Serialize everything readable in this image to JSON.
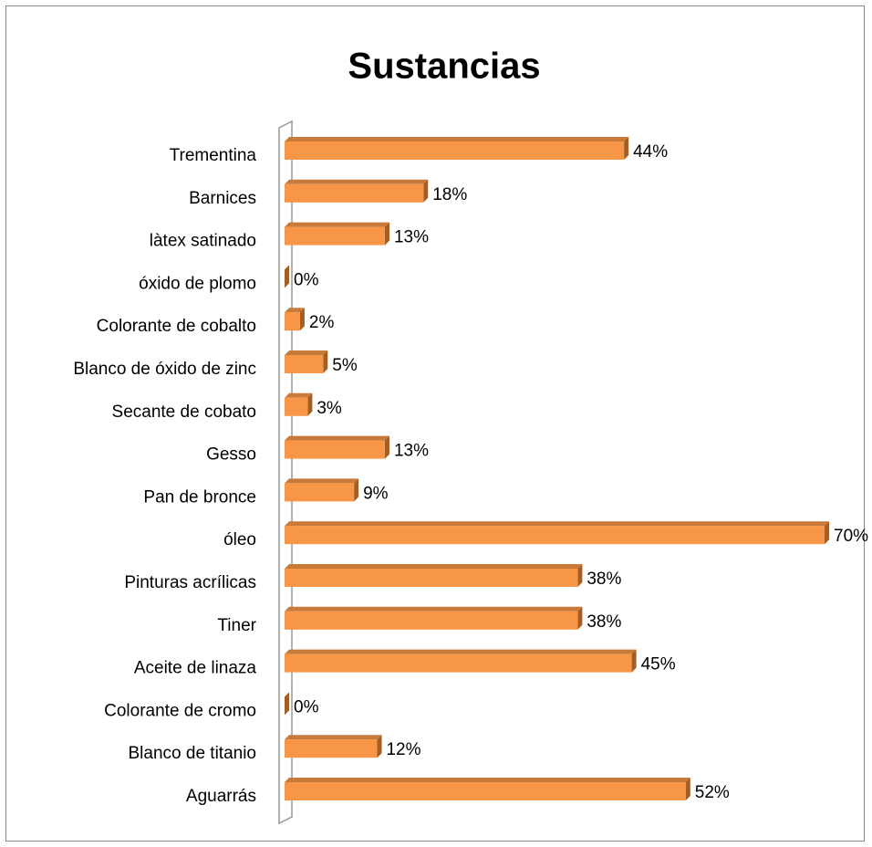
{
  "chart_data": {
    "type": "bar",
    "orientation": "horizontal",
    "title": "Sustancias",
    "categories": [
      "Trementina",
      "Barnices",
      "làtex satinado",
      "óxido de plomo",
      "Colorante de cobalto",
      "Blanco de óxido de zinc",
      "Secante de cobato",
      "Gesso",
      "Pan de bronce",
      "óleo",
      "Pinturas acrílicas",
      "Tiner",
      "Aceite de linaza",
      "Colorante de cromo",
      "Blanco de titanio",
      "Aguarrás"
    ],
    "values": [
      44,
      18,
      13,
      0,
      2,
      5,
      3,
      13,
      9,
      70,
      38,
      38,
      45,
      0,
      12,
      52
    ],
    "value_labels": [
      "44%",
      "18%",
      "13%",
      "0%",
      "2%",
      "5%",
      "3%",
      "13%",
      "9%",
      "70%",
      "38%",
      "38%",
      "45%",
      "0%",
      "12%",
      "52%"
    ],
    "color": "#f79646"
  }
}
